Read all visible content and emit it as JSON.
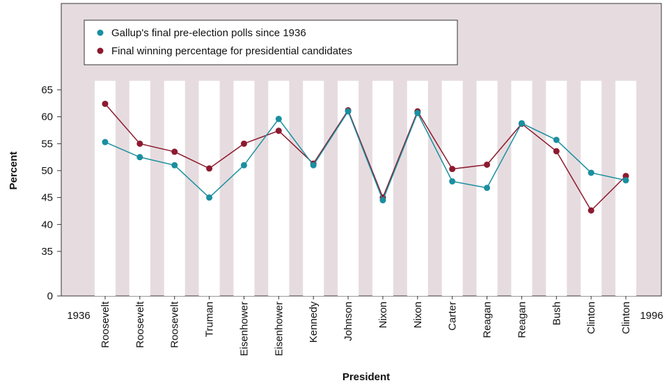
{
  "chart_data": {
    "type": "line",
    "xlabel": "President",
    "ylabel": "Percent",
    "yticks": [
      0,
      35,
      40,
      45,
      50,
      55,
      60,
      65
    ],
    "ylim": [
      35,
      65
    ],
    "y_axis_break": true,
    "start_label": "1936",
    "end_label": "1996",
    "categories": [
      "Roosevelt",
      "Roosevelt",
      "Roosevelt",
      "Truman",
      "Eisenhower",
      "Eisenhower",
      "Kennedy",
      "Johnson",
      "Nixon",
      "Nixon",
      "Carter",
      "Reagan",
      "Reagan",
      "Bush",
      "Clinton",
      "Clinton"
    ],
    "legend_position": "top-left",
    "series": [
      {
        "name": "Gallup's final pre-election polls since 1936",
        "color": "#1a8fa0",
        "values": [
          55.3,
          52.5,
          51.0,
          45.0,
          51.0,
          59.6,
          51.0,
          61.0,
          44.5,
          60.7,
          48.0,
          46.8,
          58.8,
          55.7,
          49.6,
          48.2
        ]
      },
      {
        "name": "Final winning percentage for presidential candidates",
        "color": "#8c1a2e",
        "values": [
          62.4,
          55.0,
          53.5,
          50.4,
          55.0,
          57.4,
          51.3,
          61.2,
          45.0,
          61.0,
          50.3,
          51.1,
          58.7,
          53.6,
          42.6,
          49.0
        ]
      }
    ],
    "colors": {
      "background": "#e6dcdf",
      "stripe": "#ffffff",
      "frame": "#333333"
    }
  }
}
